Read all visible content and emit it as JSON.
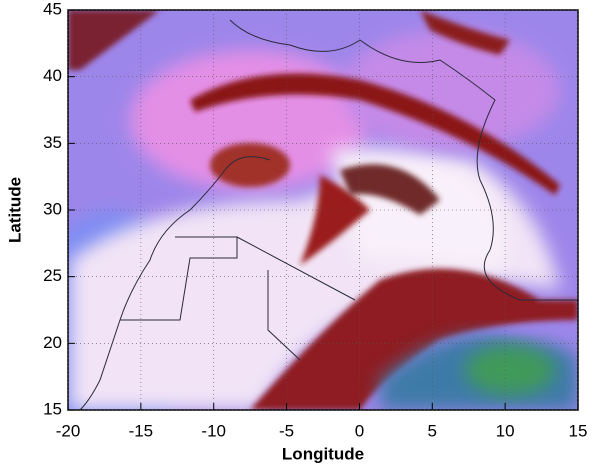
{
  "chart_data": {
    "type": "map",
    "xlabel": "Longitude",
    "ylabel": "Latitude",
    "xlim": [
      -20,
      15
    ],
    "ylim": [
      15,
      45
    ],
    "xticks": [
      -20,
      -15,
      -10,
      -5,
      0,
      5,
      10,
      15
    ],
    "yticks": [
      15,
      20,
      25,
      30,
      35,
      40,
      45
    ],
    "grid": true
  }
}
